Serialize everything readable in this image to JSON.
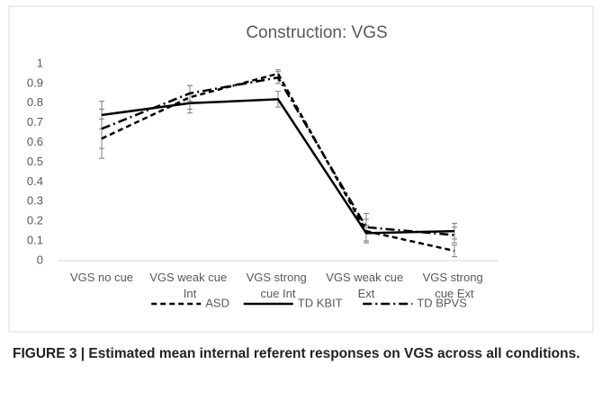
{
  "chart_data": {
    "type": "line",
    "title": "Construction: VGS",
    "categories": [
      "VGS no cue",
      "VGS weak cue Int",
      "VGS strong cue Int",
      "VGS weak cue Ext",
      "VGS strong cue Ext"
    ],
    "series": [
      {
        "name": "ASD",
        "color": "#000000",
        "dash": "6,4",
        "values": [
          0.62,
          0.83,
          0.95,
          0.15,
          0.05
        ],
        "errors": [
          0.1,
          0.06,
          0.02,
          0.06,
          0.03
        ]
      },
      {
        "name": "TD KBIT",
        "color": "#000000",
        "dash": "none",
        "values": [
          0.74,
          0.8,
          0.82,
          0.14,
          0.15
        ],
        "errors": [
          0.07,
          0.05,
          0.04,
          0.04,
          0.04
        ]
      },
      {
        "name": "TD BPVS",
        "color": "#000000",
        "dash": "10,4,2,4",
        "values": [
          0.67,
          0.85,
          0.93,
          0.17,
          0.13
        ],
        "errors": [
          0.1,
          0.04,
          0.03,
          0.07,
          0.04
        ]
      }
    ],
    "ylim": [
      0,
      1
    ],
    "yticks": [
      0,
      0.1,
      0.2,
      0.3,
      0.4,
      0.5,
      0.6,
      0.7,
      0.8,
      0.9,
      1
    ],
    "grid": false,
    "legend": "bottom",
    "caption": "FIGURE 3 | Estimated mean internal referent responses on VGS across all conditions."
  }
}
